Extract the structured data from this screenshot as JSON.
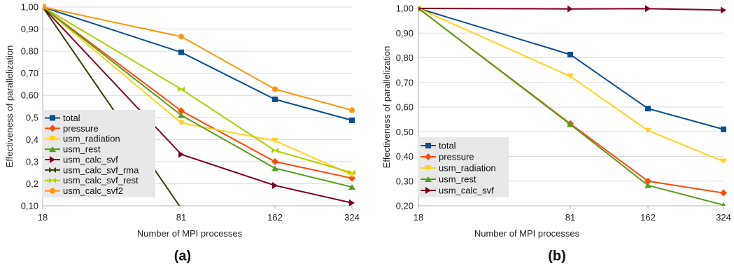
{
  "chart_data": [
    {
      "type": "line",
      "panel_label": "(a)",
      "xlabel": "Number of MPI processes",
      "ylabel": "Effectiveness of parallelization",
      "x_ticks": [
        "18",
        "81",
        "162",
        "324"
      ],
      "x": [
        18,
        81,
        162,
        324
      ],
      "ylim": [
        0.1,
        1.0
      ],
      "y_ticks": [
        "0,10",
        "0,2",
        "0,3",
        "0,4",
        "0,5",
        "0,60",
        "0,70",
        "0,80",
        "0,90",
        "1,00"
      ],
      "grid": true,
      "legend_position": "bottom-left",
      "series": [
        {
          "name": "total",
          "color": "#0c4d8c",
          "marker": "square",
          "values": [
            1.0,
            0.795,
            0.582,
            0.487
          ]
        },
        {
          "name": "pressure",
          "color": "#ff4a0a",
          "marker": "diamond",
          "values": [
            1.0,
            0.53,
            0.3,
            0.225
          ]
        },
        {
          "name": "usm_radiation",
          "color": "#ffd320",
          "marker": "triangle-down",
          "values": [
            1.0,
            0.475,
            0.395,
            0.24
          ]
        },
        {
          "name": "usm_rest",
          "color": "#579d1c",
          "marker": "triangle-up",
          "values": [
            1.0,
            0.51,
            0.27,
            0.185
          ]
        },
        {
          "name": "usm_calc_svf",
          "color": "#7e0021",
          "marker": "triangle-right",
          "values": [
            1.0,
            0.333,
            0.192,
            0.113
          ]
        },
        {
          "name": "usm_calc_svf_rma",
          "color": "#314004",
          "marker": "bowtie",
          "values": [
            1.0,
            0.088,
            null,
            null
          ]
        },
        {
          "name": "usm_calc_svf_rest",
          "color": "#aecf00",
          "marker": "bowtie",
          "values": [
            1.0,
            0.628,
            0.35,
            0.25
          ]
        },
        {
          "name": "usm_calc_svf2",
          "color": "#ff950e",
          "marker": "circle",
          "values": [
            1.0,
            0.866,
            0.628,
            0.533
          ]
        }
      ]
    },
    {
      "type": "line",
      "panel_label": "(b)",
      "xlabel": "Number of MPI processes",
      "ylabel": "Effectiveness of parallelization",
      "x_ticks": [
        "18",
        "81",
        "162",
        "324"
      ],
      "x": [
        18,
        81,
        162,
        324
      ],
      "ylim": [
        0.2,
        1.0
      ],
      "y_ticks": [
        "0,20",
        "0,30",
        "0,40",
        "0,50",
        "0,60",
        "0,70",
        "0,80",
        "0,90",
        "1,00"
      ],
      "grid": true,
      "legend_position": "bottom-left",
      "series": [
        {
          "name": "total",
          "color": "#0c4d8c",
          "marker": "square",
          "values": [
            1.0,
            0.813,
            0.594,
            0.51
          ]
        },
        {
          "name": "pressure",
          "color": "#ff4a0a",
          "marker": "diamond",
          "values": [
            1.0,
            0.533,
            0.3,
            0.252
          ]
        },
        {
          "name": "usm_radiation",
          "color": "#ffd320",
          "marker": "triangle-down",
          "values": [
            1.0,
            0.725,
            0.505,
            0.38
          ]
        },
        {
          "name": "usm_rest",
          "color": "#579d1c",
          "marker": "triangle-up",
          "values": [
            1.0,
            0.53,
            0.283,
            0.203
          ]
        },
        {
          "name": "usm_calc_svf",
          "color": "#7e0021",
          "marker": "triangle-right",
          "values": [
            1.0,
            0.998,
            0.999,
            0.993
          ]
        }
      ]
    }
  ]
}
